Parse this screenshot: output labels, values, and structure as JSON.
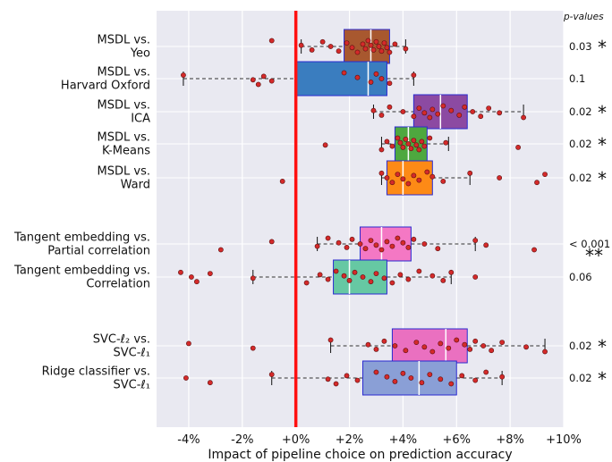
{
  "chart_data": {
    "type": "boxplot",
    "xlabel": "Impact of pipeline choice on prediction accuracy",
    "pvalue_header": "p-values",
    "xlim": [
      -5.2,
      10
    ],
    "x_ticks": [
      {
        "v": -4,
        "label": "-4%"
      },
      {
        "v": -2,
        "label": "-2%"
      },
      {
        "v": 0,
        "label": "+0%"
      },
      {
        "v": 2,
        "label": "+2%"
      },
      {
        "v": 4,
        "label": "+4%"
      },
      {
        "v": 6,
        "label": "+6%"
      },
      {
        "v": 8,
        "label": "+8%"
      },
      {
        "v": 10,
        "label": "+10%"
      }
    ],
    "reference_line": 0,
    "comparisons": [
      {
        "label_lines": [
          "MSDL vs.",
          "Yeo"
        ],
        "color": "#a8582f",
        "q1": 1.8,
        "median": 2.8,
        "q3": 3.5,
        "whisker_low": 0.2,
        "whisker_high": 4.1,
        "p_value": "0.03",
        "stars": "*",
        "points": [
          -0.9,
          0.2,
          0.6,
          1.0,
          1.3,
          1.6,
          1.9,
          2.1,
          2.3,
          2.5,
          2.6,
          2.7,
          2.8,
          2.9,
          3.0,
          3.1,
          3.2,
          3.3,
          3.4,
          3.5,
          3.7,
          4.1
        ]
      },
      {
        "label_lines": [
          "MSDL vs.",
          "Harvard Oxford"
        ],
        "color": "#3a7dbf",
        "q1": 0.0,
        "median": 2.7,
        "q3": 3.4,
        "whisker_low": -4.2,
        "whisker_high": 4.4,
        "p_value": "0.1",
        "stars": "",
        "points": [
          -4.2,
          -1.6,
          -1.4,
          -1.2,
          -0.9,
          1.8,
          2.3,
          2.8,
          3.0,
          3.2,
          3.5,
          4.4
        ]
      },
      {
        "label_lines": [
          "MSDL vs.",
          "ICA"
        ],
        "color": "#8c4aa2",
        "q1": 4.4,
        "median": 5.4,
        "q3": 6.4,
        "whisker_low": 2.9,
        "whisker_high": 8.5,
        "p_value": "0.02",
        "stars": "*",
        "points": [
          2.9,
          3.2,
          3.5,
          4.0,
          4.4,
          4.6,
          4.8,
          5.0,
          5.1,
          5.3,
          5.5,
          5.8,
          6.1,
          6.3,
          6.6,
          6.9,
          7.2,
          7.6,
          8.5
        ]
      },
      {
        "label_lines": [
          "MSDL vs.",
          "K-Means"
        ],
        "color": "#4ea83f",
        "q1": 3.7,
        "median": 4.2,
        "q3": 4.9,
        "whisker_low": 3.2,
        "whisker_high": 5.7,
        "p_value": "0.02",
        "stars": "*",
        "points": [
          1.1,
          3.2,
          3.4,
          3.6,
          3.8,
          3.9,
          4.0,
          4.1,
          4.2,
          4.3,
          4.4,
          4.5,
          4.6,
          4.7,
          4.8,
          5.0,
          5.6,
          8.3
        ]
      },
      {
        "label_lines": [
          "MSDL vs.",
          "Ward"
        ],
        "color": "#fd8a16",
        "q1": 3.4,
        "median": 4.0,
        "q3": 5.1,
        "whisker_low": 3.2,
        "whisker_high": 6.5,
        "p_value": "0.02",
        "stars": "*",
        "points": [
          -0.5,
          3.2,
          3.4,
          3.6,
          3.8,
          4.0,
          4.2,
          4.4,
          4.6,
          4.9,
          5.1,
          5.5,
          6.5,
          7.6,
          9.0,
          9.3
        ]
      },
      {
        "label_lines": [
          "Tangent embedding vs.",
          "Partial correlation"
        ],
        "color": "#f478c4",
        "q1": 2.4,
        "median": 3.2,
        "q3": 4.3,
        "whisker_low": 0.8,
        "whisker_high": 6.7,
        "p_value": "< 0.001",
        "stars": "**",
        "points": [
          -2.8,
          -0.9,
          0.8,
          1.2,
          1.6,
          1.9,
          2.1,
          2.4,
          2.6,
          2.8,
          3.0,
          3.2,
          3.4,
          3.6,
          3.8,
          4.0,
          4.2,
          4.4,
          4.8,
          5.3,
          6.7,
          7.1,
          8.9
        ]
      },
      {
        "label_lines": [
          "Tangent embedding vs.",
          "Correlation"
        ],
        "color": "#66c8a3",
        "q1": 1.4,
        "median": 2.0,
        "q3": 3.4,
        "whisker_low": -1.6,
        "whisker_high": 5.8,
        "p_value": "0.06",
        "stars": "",
        "points": [
          -4.3,
          -3.9,
          -3.7,
          -3.2,
          -1.6,
          0.4,
          0.9,
          1.2,
          1.5,
          1.8,
          2.0,
          2.2,
          2.5,
          2.8,
          3.0,
          3.3,
          3.6,
          3.9,
          4.2,
          4.6,
          5.1,
          5.5,
          5.8,
          6.7
        ]
      },
      {
        "label_lines": [
          "SVC-ℓ₂ vs.",
          "SVC-ℓ₁"
        ],
        "color": "#ea70c0",
        "q1": 3.6,
        "median": 5.6,
        "q3": 6.4,
        "whisker_low": 1.3,
        "whisker_high": 9.3,
        "p_value": "0.02",
        "stars": "*",
        "points": [
          -4.0,
          -1.6,
          1.3,
          2.7,
          3.0,
          3.3,
          3.7,
          4.1,
          4.5,
          4.8,
          5.1,
          5.4,
          5.7,
          6.0,
          6.3,
          6.5,
          6.7,
          7.0,
          7.3,
          7.7,
          8.6,
          9.3
        ]
      },
      {
        "label_lines": [
          "Ridge classifier vs.",
          "SVC-ℓ₁"
        ],
        "color": "#8a9fd6",
        "q1": 2.5,
        "median": 4.6,
        "q3": 6.0,
        "whisker_low": -0.9,
        "whisker_high": 7.7,
        "p_value": "0.02",
        "stars": "*",
        "points": [
          -4.1,
          -3.2,
          -0.9,
          1.2,
          1.5,
          1.9,
          2.3,
          3.0,
          3.4,
          3.7,
          4.0,
          4.3,
          4.7,
          5.0,
          5.4,
          5.8,
          6.2,
          6.7,
          7.1,
          7.7
        ]
      }
    ]
  }
}
